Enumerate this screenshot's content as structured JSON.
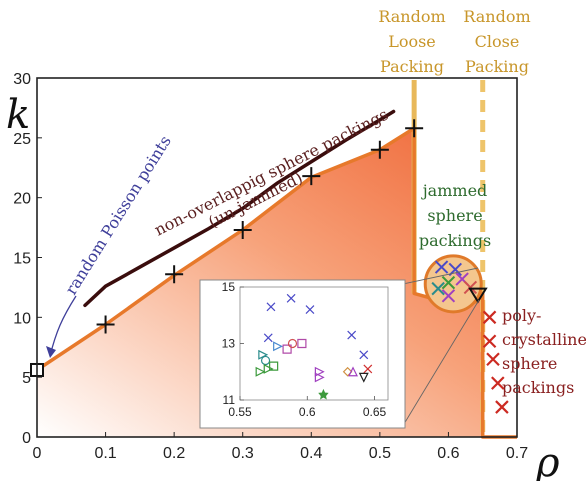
{
  "chart_data": {
    "type": "line",
    "xlabel": "ρ",
    "ylabel": "k",
    "xlim": [
      0,
      0.7
    ],
    "ylim": [
      0,
      30
    ],
    "x_ticks": [
      "0",
      "0.1",
      "0.2",
      "0.3",
      "0.4",
      "0.5",
      "0.6",
      "0.7"
    ],
    "y_ticks": [
      "0",
      "5",
      "10",
      "15",
      "20",
      "25",
      "30"
    ],
    "annotations": {
      "rlp": [
        "Random",
        "Loose",
        "Packing"
      ],
      "rcp": [
        "Random",
        "Close",
        "Packing"
      ],
      "poisson": "random Poisson points",
      "nonoverlap": [
        "non-overlappig sphere packings",
        "(un-jammed)"
      ],
      "jammed": [
        "jammed",
        "sphere",
        "packings"
      ],
      "poly": [
        "poly-",
        "crystalline",
        "sphere",
        "packings"
      ]
    },
    "boundary_line": {
      "x": [
        0.0,
        0.1,
        0.2,
        0.3,
        0.4,
        0.5,
        0.55,
        0.55,
        0.6,
        0.64,
        0.65,
        0.65,
        0.7
      ],
      "y": [
        5.6,
        9.4,
        13.5,
        17.3,
        21.7,
        24.0,
        25.8,
        12.0,
        11.2,
        11.3,
        12.0,
        0.0,
        0.0
      ]
    },
    "upper_curve": {
      "x": [
        0.07,
        0.1,
        0.15,
        0.2,
        0.25,
        0.3,
        0.35,
        0.4,
        0.45,
        0.5,
        0.52
      ],
      "y": [
        11.0,
        12.6,
        14.2,
        15.8,
        17.4,
        19.1,
        21.2,
        23.0,
        24.8,
        26.5,
        27.2
      ]
    },
    "plus_markers": {
      "x": [
        0.1,
        0.2,
        0.3,
        0.4,
        0.5,
        0.55
      ],
      "y": [
        9.4,
        13.6,
        17.3,
        21.8,
        24.0,
        25.8
      ]
    },
    "poisson_point": {
      "x": 0.0,
      "y": 5.6
    },
    "rlp_x": 0.55,
    "rcp_x": 0.65,
    "poly_markers": {
      "x": [
        0.66,
        0.66,
        0.665,
        0.672,
        0.678
      ],
      "y": [
        10.0,
        8.0,
        6.5,
        4.5,
        2.5
      ]
    },
    "inset": {
      "xlim": [
        0.55,
        0.66
      ],
      "ylim": [
        11,
        15
      ],
      "x_ticks": [
        "0.55",
        "0.6",
        "0.65"
      ],
      "y_ticks": [
        "11",
        "13",
        "15"
      ],
      "points": [
        {
          "x": 0.573,
          "y": 14.3,
          "m": "x",
          "c": "#4a4ac8"
        },
        {
          "x": 0.588,
          "y": 14.6,
          "m": "x",
          "c": "#4a4ac8"
        },
        {
          "x": 0.602,
          "y": 14.2,
          "m": "x",
          "c": "#4a4ac8"
        },
        {
          "x": 0.633,
          "y": 13.3,
          "m": "x",
          "c": "#4a4ac8"
        },
        {
          "x": 0.642,
          "y": 12.6,
          "m": "x",
          "c": "#4a4ac8"
        },
        {
          "x": 0.571,
          "y": 13.2,
          "m": "x",
          "c": "#4a4ac8"
        },
        {
          "x": 0.567,
          "y": 12.6,
          "m": "tri-r",
          "c": "#2a8c8c"
        },
        {
          "x": 0.569,
          "y": 12.4,
          "m": "circle",
          "c": "#2a8c8c"
        },
        {
          "x": 0.565,
          "y": 12.0,
          "m": "tri-r",
          "c": "#3c9a3c"
        },
        {
          "x": 0.571,
          "y": 12.1,
          "m": "tri-r",
          "c": "#3c9a3c"
        },
        {
          "x": 0.575,
          "y": 12.2,
          "m": "square",
          "c": "#3c9a3c"
        },
        {
          "x": 0.578,
          "y": 12.9,
          "m": "tri-r",
          "c": "#4a8ad0"
        },
        {
          "x": 0.585,
          "y": 12.8,
          "m": "square",
          "c": "#b04aa8"
        },
        {
          "x": 0.589,
          "y": 13.0,
          "m": "circle",
          "c": "#d05050"
        },
        {
          "x": 0.596,
          "y": 13.0,
          "m": "square",
          "c": "#b04aa8"
        },
        {
          "x": 0.609,
          "y": 11.8,
          "m": "tri-r",
          "c": "#a040c0"
        },
        {
          "x": 0.609,
          "y": 12.0,
          "m": "tri-r",
          "c": "#a040c0"
        },
        {
          "x": 0.63,
          "y": 12.0,
          "m": "diamond",
          "c": "#d09040"
        },
        {
          "x": 0.634,
          "y": 12.0,
          "m": "tri-up",
          "c": "#a040c0"
        },
        {
          "x": 0.645,
          "y": 12.1,
          "m": "x",
          "c": "#d03030"
        },
        {
          "x": 0.642,
          "y": 11.8,
          "m": "tri-down",
          "c": "#222222"
        },
        {
          "x": 0.612,
          "y": 11.2,
          "m": "star",
          "c": "#3c9a3c"
        }
      ]
    }
  }
}
